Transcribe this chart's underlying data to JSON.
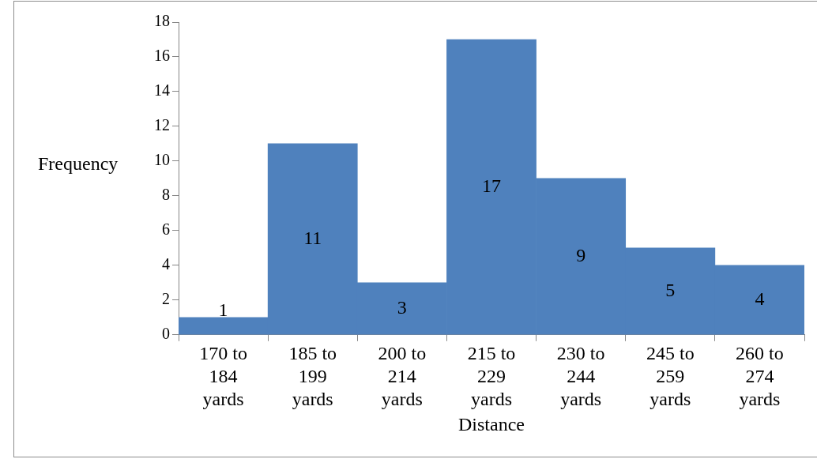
{
  "chart_data": {
    "type": "bar",
    "xlabel": "Distance",
    "ylabel": "Frequency",
    "categories": [
      "170 to 184 yards",
      "185 to 199 yards",
      "200 to 214 yards",
      "215 to 229 yards",
      "230 to 244 yards",
      "245 to 259 yards",
      "260 to 274 yards"
    ],
    "values": [
      1,
      11,
      3,
      17,
      9,
      5,
      4
    ],
    "color": "#4f81bd",
    "ylim": [
      0,
      18
    ],
    "yticks": [
      0,
      2,
      4,
      6,
      8,
      10,
      12,
      14,
      16,
      18
    ],
    "grid": false,
    "legend": false,
    "data_labels": true
  }
}
